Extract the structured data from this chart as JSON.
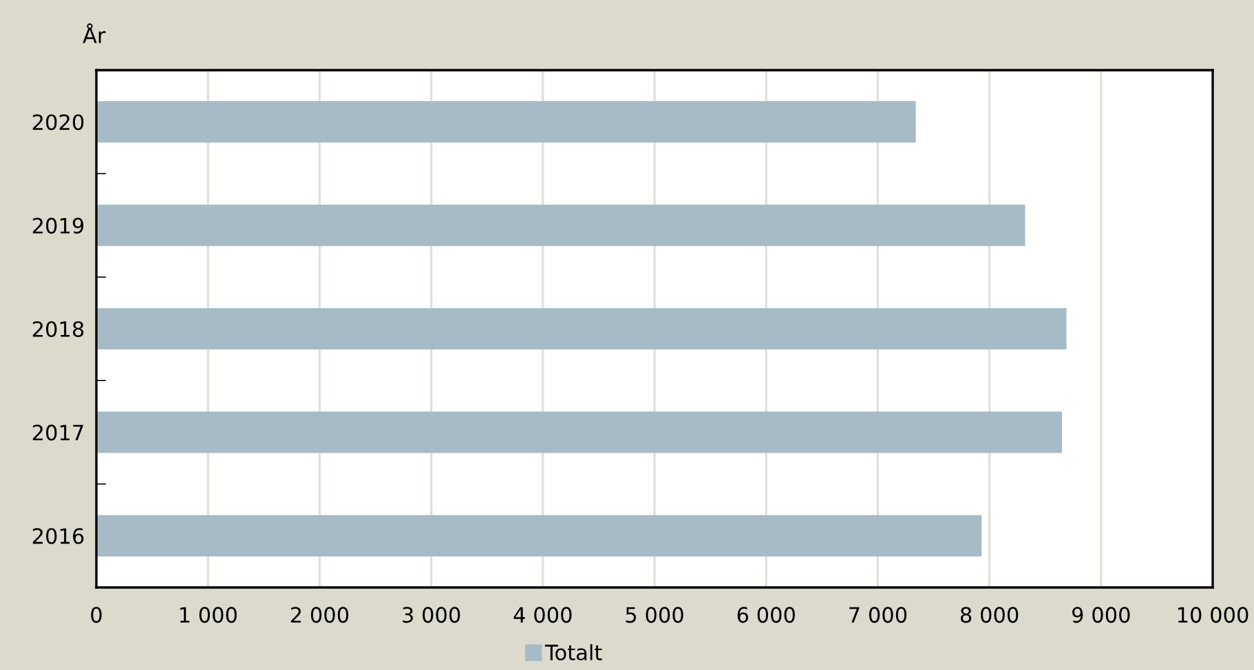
{
  "chart_data": {
    "type": "bar",
    "orientation": "horizontal",
    "ylabel": "År",
    "categories": [
      "2020",
      "2019",
      "2018",
      "2017",
      "2016"
    ],
    "series": [
      {
        "name": "Totalt",
        "color": "#a7bbc6",
        "values": [
          7340,
          8320,
          8690,
          8650,
          7930
        ]
      }
    ],
    "xlim": [
      0,
      10000
    ],
    "xticks": [
      {
        "value": 0,
        "label": "0"
      },
      {
        "value": 1000,
        "label": "1 000"
      },
      {
        "value": 2000,
        "label": "2 000"
      },
      {
        "value": 3000,
        "label": "3 000"
      },
      {
        "value": 4000,
        "label": "4 000"
      },
      {
        "value": 5000,
        "label": "5 000"
      },
      {
        "value": 6000,
        "label": "6 000"
      },
      {
        "value": 7000,
        "label": "7 000"
      },
      {
        "value": 8000,
        "label": "8 000"
      },
      {
        "value": 9000,
        "label": "9 000"
      },
      {
        "value": 10000,
        "label": "10 000"
      }
    ],
    "grid": "x",
    "legend": "bottom"
  }
}
